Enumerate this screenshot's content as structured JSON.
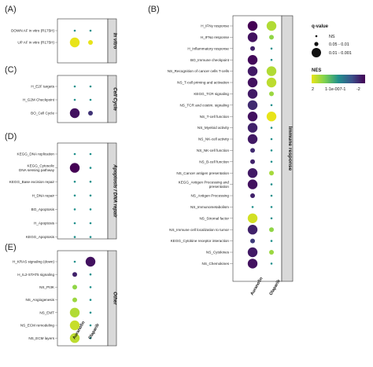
{
  "chart_data": [
    {
      "panel": "(A)",
      "type": "scatter",
      "strip_label": "In vitro",
      "x": [
        "Auranofin",
        "Olaparib"
      ],
      "rows": [
        "DOWN AF in vitro (R175H)",
        "UP AF in vitro (R175H)"
      ],
      "points": [
        {
          "row": "DOWN AF in vitro (R175H)",
          "col": "Auranofin",
          "nes": 0,
          "q": "NS"
        },
        {
          "row": "DOWN AF in vitro (R175H)",
          "col": "Olaparib",
          "nes": 0,
          "q": "NS"
        },
        {
          "row": "UP AF in vitro (R175H)",
          "col": "Auranofin",
          "nes": 2,
          "q": "0.01 - 0.001"
        },
        {
          "row": "UP AF in vitro (R175H)",
          "col": "Olaparib",
          "nes": 2,
          "q": "0.05 - 0.01"
        }
      ]
    },
    {
      "panel": "(C)",
      "type": "scatter",
      "strip_label": "Cell Cycle",
      "x": [
        "Auranofin",
        "Olaparib"
      ],
      "rows": [
        "H_E2F targets",
        "H_G2M Checkpoint",
        "BO_Cell Cycle"
      ],
      "points": [
        {
          "row": "H_E2F targets",
          "col": "Auranofin",
          "nes": 0,
          "q": "NS"
        },
        {
          "row": "H_E2F targets",
          "col": "Olaparib",
          "nes": 0,
          "q": "NS"
        },
        {
          "row": "H_G2M Checkpoint",
          "col": "Auranofin",
          "nes": 0,
          "q": "NS"
        },
        {
          "row": "H_G2M Checkpoint",
          "col": "Olaparib",
          "nes": 0,
          "q": "NS"
        },
        {
          "row": "BO_Cell Cycle",
          "col": "Auranofin",
          "nes": -1.8,
          "q": "0.01 - 0.001"
        },
        {
          "row": "BO_Cell Cycle",
          "col": "Olaparib",
          "nes": -1.4,
          "q": "0.05 - 0.01"
        }
      ]
    },
    {
      "panel": "(D)",
      "type": "scatter",
      "strip_label": "Apoptosis / DNA repair",
      "x": [
        "Auranofin",
        "Olaparib"
      ],
      "rows": [
        "KEGG_DNA replication",
        "KEGG_Cytosolic DNA sensing pathway",
        "KEGG_Base excision repair",
        "H_DNA repair",
        "BO_Apoptosis",
        "H_Apoptosis",
        "KEGG_Apoptosis"
      ],
      "points": [
        {
          "row": "KEGG_DNA replication",
          "col": "Auranofin",
          "nes": 0,
          "q": "NS"
        },
        {
          "row": "KEGG_DNA replication",
          "col": "Olaparib",
          "nes": 0,
          "q": "NS"
        },
        {
          "row": "KEGG_Cytosolic DNA sensing pathway",
          "col": "Auranofin",
          "nes": -2,
          "q": "0.01 - 0.001"
        },
        {
          "row": "KEGG_Cytosolic DNA sensing pathway",
          "col": "Olaparib",
          "nes": 0,
          "q": "NS"
        },
        {
          "row": "KEGG_Base excision repair",
          "col": "Auranofin",
          "nes": 0,
          "q": "NS"
        },
        {
          "row": "KEGG_Base excision repair",
          "col": "Olaparib",
          "nes": 0,
          "q": "NS"
        },
        {
          "row": "H_DNA repair",
          "col": "Auranofin",
          "nes": 0,
          "q": "NS"
        },
        {
          "row": "H_DNA repair",
          "col": "Olaparib",
          "nes": 0,
          "q": "NS"
        },
        {
          "row": "BO_Apoptosis",
          "col": "Auranofin",
          "nes": 0,
          "q": "NS"
        },
        {
          "row": "BO_Apoptosis",
          "col": "Olaparib",
          "nes": 0,
          "q": "NS"
        },
        {
          "row": "H_Apoptosis",
          "col": "Auranofin",
          "nes": 0,
          "q": "NS"
        },
        {
          "row": "H_Apoptosis",
          "col": "Olaparib",
          "nes": 0,
          "q": "NS"
        },
        {
          "row": "KEGG_Apoptosis",
          "col": "Auranofin",
          "nes": 0,
          "q": "NS"
        },
        {
          "row": "KEGG_Apoptosis",
          "col": "Olaparib",
          "nes": 0,
          "q": "NS"
        }
      ]
    },
    {
      "panel": "(E)",
      "type": "scatter",
      "strip_label": "Other",
      "x": [
        "Auranofin",
        "Olaparib"
      ],
      "rows": [
        "H_KRAS signaling (down)",
        "H_IL2-STAT5 signaling",
        "NS_PI3K",
        "NS_Angiogenesis",
        "NS_EMT",
        "NS_ECM remodeling",
        "NS_ECM layers"
      ],
      "points": [
        {
          "row": "H_KRAS signaling (down)",
          "col": "Auranofin",
          "nes": 0,
          "q": "NS"
        },
        {
          "row": "H_KRAS signaling (down)",
          "col": "Olaparib",
          "nes": -1.8,
          "q": "0.01 - 0.001"
        },
        {
          "row": "H_IL2-STAT5 signaling",
          "col": "Auranofin",
          "nes": -1.6,
          "q": "0.05 - 0.01"
        },
        {
          "row": "H_IL2-STAT5 signaling",
          "col": "Olaparib",
          "nes": 0,
          "q": "NS"
        },
        {
          "row": "NS_PI3K",
          "col": "Auranofin",
          "nes": 1.2,
          "q": "0.05 - 0.01"
        },
        {
          "row": "NS_PI3K",
          "col": "Olaparib",
          "nes": 0,
          "q": "NS"
        },
        {
          "row": "NS_Angiogenesis",
          "col": "Auranofin",
          "nes": 1.3,
          "q": "0.05 - 0.01"
        },
        {
          "row": "NS_Angiogenesis",
          "col": "Olaparib",
          "nes": 0,
          "q": "NS"
        },
        {
          "row": "NS_EMT",
          "col": "Auranofin",
          "nes": 1.5,
          "q": "0.01 - 0.001"
        },
        {
          "row": "NS_EMT",
          "col": "Olaparib",
          "nes": 0,
          "q": "NS"
        },
        {
          "row": "NS_ECM remodeling",
          "col": "Auranofin",
          "nes": 1.7,
          "q": "0.01 - 0.001"
        },
        {
          "row": "NS_ECM remodeling",
          "col": "Olaparib",
          "nes": 0,
          "q": "NS"
        },
        {
          "row": "NS_ECM layers",
          "col": "Auranofin",
          "nes": 1.6,
          "q": "0.01 - 0.001"
        },
        {
          "row": "NS_ECM layers",
          "col": "Olaparib",
          "nes": 0,
          "q": "NS"
        }
      ]
    },
    {
      "panel": "(B)",
      "type": "scatter",
      "strip_label": "Immune response",
      "x": [
        "Auranofin",
        "Olaparib"
      ],
      "rows": [
        "H_IFNγ response",
        "H_IFNα response",
        "H_Inflammatory response",
        "BO_Immune checkpoint",
        "NS_Recognition of cancer cells T-cells",
        "NS_T-cell priming and activation",
        "KEGG_TCR signaling",
        "NS_TCR and costim. signaling",
        "NS_T-cell function",
        "NS_Myeloid activity",
        "NS_NK-cell activity",
        "NS_NK-cell function",
        "NS_B-cell function",
        "NS_Cancer antigen presentation",
        "KEGG_Antigen Processing and presentation",
        "NS_Antigen Processing",
        "NS_Immunometabolism",
        "NS_Stromal factor",
        "NS_Immune cell localization to tumor",
        "KEGG_Cytokine receptor interaction",
        "NS_Cytokines",
        "NS_Chemokines"
      ],
      "points": [
        {
          "row": "H_IFNγ response",
          "col": "Auranofin",
          "nes": -2,
          "q": "0.01 - 0.001"
        },
        {
          "row": "H_IFNγ response",
          "col": "Olaparib",
          "nes": 1.5,
          "q": "0.01 - 0.001"
        },
        {
          "row": "H_IFNα response",
          "col": "Auranofin",
          "nes": -1.8,
          "q": "0.01 - 0.001"
        },
        {
          "row": "H_IFNα response",
          "col": "Olaparib",
          "nes": 1.2,
          "q": "0.05 - 0.01"
        },
        {
          "row": "H_Inflammatory response",
          "col": "Auranofin",
          "nes": -1.6,
          "q": "0.05 - 0.01"
        },
        {
          "row": "H_Inflammatory response",
          "col": "Olaparib",
          "nes": 0,
          "q": "NS"
        },
        {
          "row": "BO_Immune checkpoint",
          "col": "Auranofin",
          "nes": -1.9,
          "q": "0.01 - 0.001"
        },
        {
          "row": "BO_Immune checkpoint",
          "col": "Olaparib",
          "nes": 0,
          "q": "NS"
        },
        {
          "row": "NS_Recognition of cancer cells T-cells",
          "col": "Auranofin",
          "nes": -1.7,
          "q": "0.01 - 0.001"
        },
        {
          "row": "NS_Recognition of cancer cells T-cells",
          "col": "Olaparib",
          "nes": 1.5,
          "q": "0.01 - 0.001"
        },
        {
          "row": "NS_T-cell priming and activation",
          "col": "Auranofin",
          "nes": -1.8,
          "q": "0.01 - 0.001"
        },
        {
          "row": "NS_T-cell priming and activation",
          "col": "Olaparib",
          "nes": 1.6,
          "q": "0.01 - 0.001"
        },
        {
          "row": "KEGG_TCR signaling",
          "col": "Auranofin",
          "nes": -1.7,
          "q": "0.01 - 0.001"
        },
        {
          "row": "KEGG_TCR signaling",
          "col": "Olaparib",
          "nes": 1.3,
          "q": "0.05 - 0.01"
        },
        {
          "row": "NS_TCR and costim. signaling",
          "col": "Auranofin",
          "nes": -1.5,
          "q": "0.01 - 0.001"
        },
        {
          "row": "NS_TCR and costim. signaling",
          "col": "Olaparib",
          "nes": 0,
          "q": "NS"
        },
        {
          "row": "NS_T-cell function",
          "col": "Auranofin",
          "nes": -1.8,
          "q": "0.01 - 0.001"
        },
        {
          "row": "NS_T-cell function",
          "col": "Olaparib",
          "nes": 2,
          "q": "0.01 - 0.001"
        },
        {
          "row": "NS_Myeloid activity",
          "col": "Auranofin",
          "nes": -1.6,
          "q": "0.01 - 0.001"
        },
        {
          "row": "NS_Myeloid activity",
          "col": "Olaparib",
          "nes": 0,
          "q": "NS"
        },
        {
          "row": "NS_NK-cell activity",
          "col": "Auranofin",
          "nes": -1.7,
          "q": "0.01 - 0.001"
        },
        {
          "row": "NS_NK-cell activity",
          "col": "Olaparib",
          "nes": 0,
          "q": "NS"
        },
        {
          "row": "NS_NK-cell function",
          "col": "Auranofin",
          "nes": -1.5,
          "q": "0.05 - 0.01"
        },
        {
          "row": "NS_NK-cell function",
          "col": "Olaparib",
          "nes": 0,
          "q": "NS"
        },
        {
          "row": "NS_B-cell function",
          "col": "Auranofin",
          "nes": -1.6,
          "q": "0.05 - 0.01"
        },
        {
          "row": "NS_B-cell function",
          "col": "Olaparib",
          "nes": 0,
          "q": "NS"
        },
        {
          "row": "NS_Cancer antigen presentation",
          "col": "Auranofin",
          "nes": -1.7,
          "q": "0.01 - 0.001"
        },
        {
          "row": "NS_Cancer antigen presentation",
          "col": "Olaparib",
          "nes": 1.4,
          "q": "0.05 - 0.01"
        },
        {
          "row": "KEGG_Antigen Processing and presentation",
          "col": "Auranofin",
          "nes": -1.8,
          "q": "0.01 - 0.001"
        },
        {
          "row": "KEGG_Antigen Processing and presentation",
          "col": "Olaparib",
          "nes": 0,
          "q": "NS"
        },
        {
          "row": "NS_Antigen Processing",
          "col": "Auranofin",
          "nes": -1.6,
          "q": "0.05 - 0.01"
        },
        {
          "row": "NS_Antigen Processing",
          "col": "Olaparib",
          "nes": 0,
          "q": "NS"
        },
        {
          "row": "NS_Immunometabolism",
          "col": "Auranofin",
          "nes": 0,
          "q": "NS"
        },
        {
          "row": "NS_Immunometabolism",
          "col": "Olaparib",
          "nes": 0,
          "q": "NS"
        },
        {
          "row": "NS_Stromal factor",
          "col": "Auranofin",
          "nes": 1.8,
          "q": "0.01 - 0.001"
        },
        {
          "row": "NS_Stromal factor",
          "col": "Olaparib",
          "nes": 0,
          "q": "NS"
        },
        {
          "row": "NS_Immune cell localization to tumor",
          "col": "Auranofin",
          "nes": -1.6,
          "q": "0.01 - 0.001"
        },
        {
          "row": "NS_Immune cell localization to tumor",
          "col": "Olaparib",
          "nes": 1.2,
          "q": "0.05 - 0.01"
        },
        {
          "row": "KEGG_Cytokine receptor interaction",
          "col": "Auranofin",
          "nes": -1.3,
          "q": "0.05 - 0.01"
        },
        {
          "row": "KEGG_Cytokine receptor interaction",
          "col": "Olaparib",
          "nes": 0,
          "q": "NS"
        },
        {
          "row": "NS_Cytokines",
          "col": "Auranofin",
          "nes": -1.7,
          "q": "0.01 - 0.001"
        },
        {
          "row": "NS_Cytokines",
          "col": "Olaparib",
          "nes": 1.3,
          "q": "0.05 - 0.01"
        },
        {
          "row": "NS_Chemokines",
          "col": "Auranofin",
          "nes": -1.8,
          "q": "0.01 - 0.001"
        },
        {
          "row": "NS_Chemokines",
          "col": "Olaparib",
          "nes": 0,
          "q": "NS"
        }
      ]
    }
  ],
  "x_labels_left": [
    "Auranofin",
    "Olaparib"
  ],
  "x_labels_right": [
    "Auranofin",
    "Olaparib"
  ],
  "legend": {
    "q_title": "q-value",
    "q_items": [
      "NS",
      "0.05 - 0.01",
      "0.01 - 0.001"
    ],
    "nes_title": "NES",
    "nes_ticks": [
      "2",
      "1-1e-007-1",
      "-2"
    ]
  },
  "colors": {
    "nes_low": "#3b0f70",
    "nes_mid": "#21908c",
    "nes_high": "#e8e419",
    "strip_fill": "#d9d9d9"
  }
}
